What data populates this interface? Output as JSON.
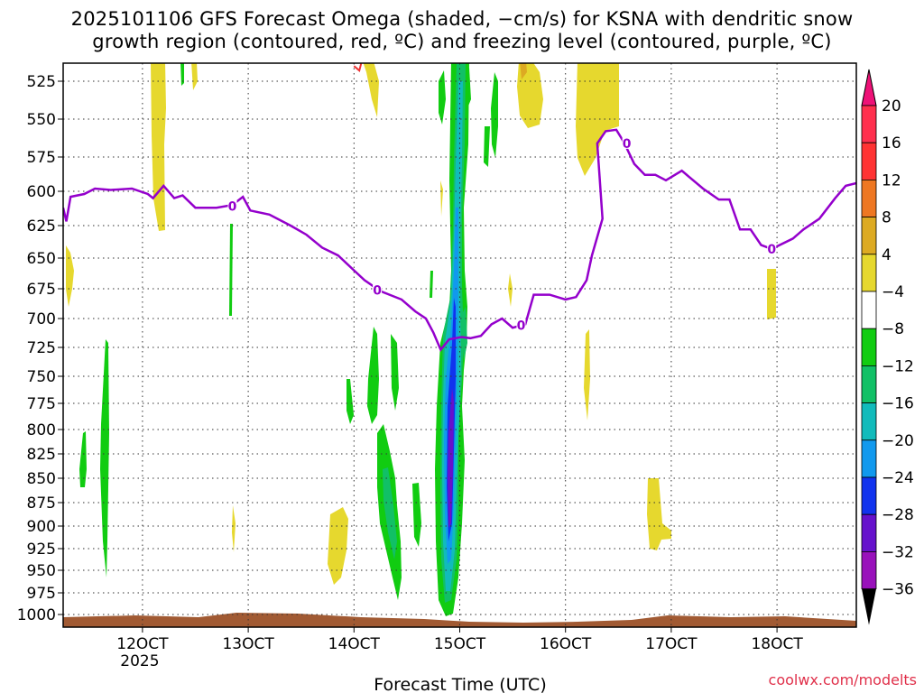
{
  "title_line1": "2025101106 GFS Forecast Omega (shaded, −cm/s) for KSNA with dendritic snow",
  "title_line2": "growth region (contoured, red, ºC) and freezing level (contoured, purple, ºC)",
  "credit": "coolwx.com/modelts",
  "chart_data": {
    "type": "heatmap",
    "title": "2025101106 GFS Forecast Omega (shaded, −cm/s) for KSNA with dendritic snow growth region (contoured, red, ºC) and freezing level (contoured, purple, ºC)",
    "xlabel": "Forecast Time (UTC)",
    "ylabel": "",
    "x_range_days": [
      11.25,
      18.75
    ],
    "x_ticks": [
      {
        "day": 12,
        "label": "12OCT",
        "sublabel": "2025"
      },
      {
        "day": 13,
        "label": "13OCT",
        "sublabel": ""
      },
      {
        "day": 14,
        "label": "14OCT",
        "sublabel": ""
      },
      {
        "day": 15,
        "label": "15OCT",
        "sublabel": ""
      },
      {
        "day": 16,
        "label": "16OCT",
        "sublabel": ""
      },
      {
        "day": 17,
        "label": "17OCT",
        "sublabel": ""
      },
      {
        "day": 18,
        "label": "18OCT",
        "sublabel": ""
      }
    ],
    "y_range_hpa": [
      1010,
      508
    ],
    "y_ticks": [
      "525",
      "550",
      "575",
      "600",
      "625",
      "650",
      "675",
      "700",
      "725",
      "750",
      "775",
      "800",
      "825",
      "850",
      "875",
      "900",
      "925",
      "950",
      "975",
      "1000"
    ],
    "colorbar": {
      "labels": [
        "20",
        "16",
        "12",
        "8",
        "4",
        "−4",
        "−8",
        "−12",
        "−16",
        "−20",
        "−24",
        "−28",
        "−32",
        "−36"
      ],
      "colors": [
        "#ff2f4e",
        "#ff3333",
        "#ee7722",
        "#ddaa22",
        "#e6d82e",
        "#ffffff",
        "#11cc11",
        "#11c066",
        "#11bbbb",
        "#1199ee",
        "#1133ee",
        "#6611cc",
        "#9911bb",
        "#aaaaaa"
      ]
    },
    "freezing_level": {
      "label": "0",
      "points": [
        [
          11.25,
          612
        ],
        [
          11.28,
          622
        ],
        [
          11.32,
          604
        ],
        [
          11.45,
          602
        ],
        [
          11.55,
          598
        ],
        [
          11.7,
          599
        ],
        [
          11.9,
          598
        ],
        [
          12.05,
          602
        ],
        [
          12.1,
          605
        ],
        [
          12.2,
          596
        ],
        [
          12.3,
          605
        ],
        [
          12.38,
          603
        ],
        [
          12.5,
          612
        ],
        [
          12.7,
          612
        ],
        [
          12.85,
          610
        ],
        [
          12.95,
          604
        ],
        [
          13.02,
          614
        ],
        [
          13.2,
          617
        ],
        [
          13.4,
          625
        ],
        [
          13.55,
          632
        ],
        [
          13.7,
          642
        ],
        [
          13.85,
          648
        ],
        [
          14.0,
          660
        ],
        [
          14.1,
          668
        ],
        [
          14.25,
          677
        ],
        [
          14.45,
          684
        ],
        [
          14.58,
          694
        ],
        [
          14.68,
          700
        ],
        [
          14.75,
          712
        ],
        [
          14.82,
          727
        ],
        [
          14.9,
          718
        ],
        [
          15.02,
          716
        ],
        [
          15.1,
          717
        ],
        [
          15.2,
          715
        ],
        [
          15.3,
          705
        ],
        [
          15.4,
          700
        ],
        [
          15.5,
          708
        ],
        [
          15.62,
          705
        ],
        [
          15.7,
          680
        ],
        [
          15.85,
          680
        ],
        [
          16.0,
          684
        ],
        [
          16.1,
          682
        ],
        [
          16.2,
          668
        ],
        [
          16.25,
          648
        ],
        [
          16.35,
          620
        ],
        [
          16.3,
          566
        ],
        [
          16.38,
          558
        ],
        [
          16.48,
          557
        ],
        [
          16.55,
          565
        ],
        [
          16.65,
          580
        ],
        [
          16.75,
          588
        ],
        [
          16.85,
          588
        ],
        [
          16.95,
          592
        ],
        [
          17.1,
          585
        ],
        [
          17.3,
          598
        ],
        [
          17.45,
          606
        ],
        [
          17.55,
          606
        ],
        [
          17.65,
          628
        ],
        [
          17.75,
          628
        ],
        [
          17.85,
          640
        ],
        [
          17.95,
          643
        ],
        [
          18.15,
          635
        ],
        [
          18.25,
          628
        ],
        [
          18.4,
          620
        ],
        [
          18.55,
          605
        ],
        [
          18.65,
          596
        ],
        [
          18.75,
          594
        ]
      ]
    },
    "dendritic_contour": {
      "color": "red",
      "points": [
        [
          14.0,
          515
        ],
        [
          14.05,
          518
        ],
        [
          14.08,
          510
        ]
      ]
    }
  }
}
